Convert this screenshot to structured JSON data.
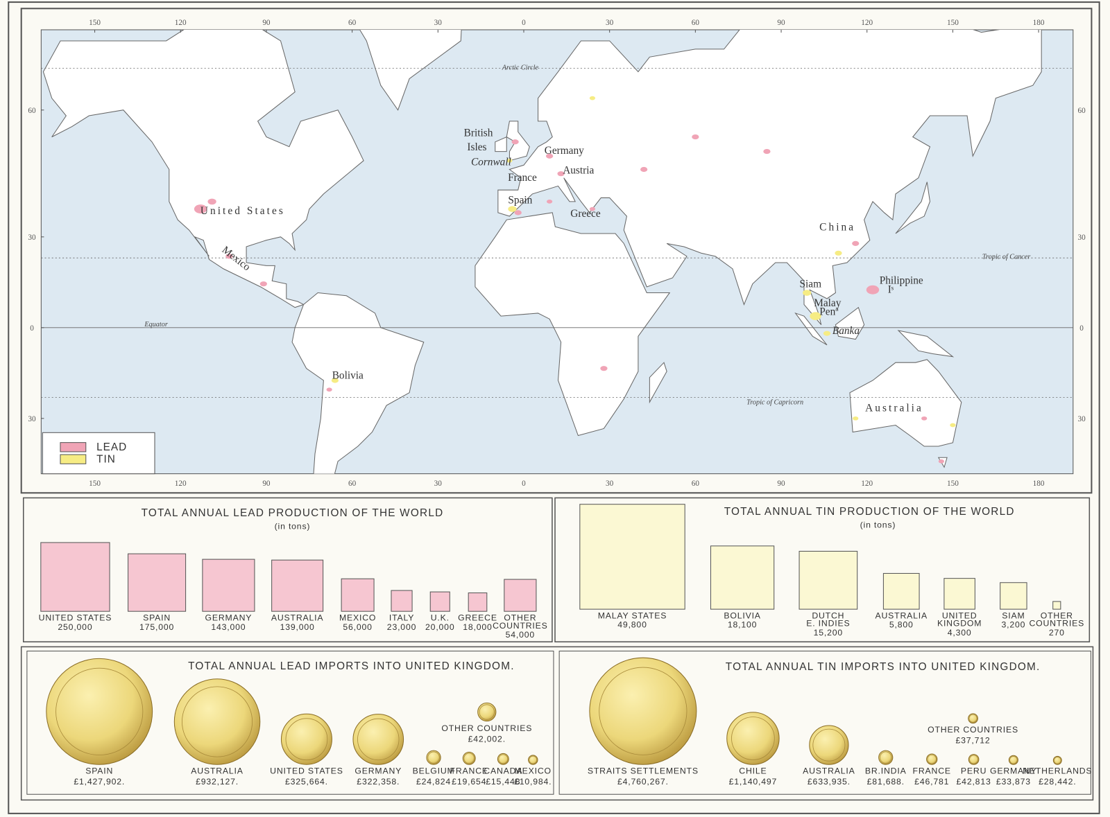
{
  "map": {
    "longitude_ticks": [
      {
        "value": -150,
        "label": "150"
      },
      {
        "value": -120,
        "label": "120"
      },
      {
        "value": -90,
        "label": "90"
      },
      {
        "value": -60,
        "label": "60"
      },
      {
        "value": -30,
        "label": "30"
      },
      0,
      30,
      60,
      90,
      120,
      150,
      180
    ],
    "latitude_ticks": [
      60,
      30,
      0,
      {
        "value": -30,
        "label": "30"
      }
    ],
    "lines": {
      "arctic_circle": "Arctic Circle",
      "tropic_of_cancer": "Tropic of Cancer",
      "equator": "Equator",
      "tropic_of_capricorn": "Tropic of Capricorn"
    },
    "places": {
      "british": "British",
      "isles": "Isles",
      "cornwall": "Cornwall",
      "germany": "Germany",
      "austria": "Austria",
      "france": "France",
      "spain": "Spain",
      "greece": "Greece",
      "united_states": "United States",
      "mexico": "Mexico",
      "bolivia": "Bolivia",
      "china": "China",
      "siam": "Siam",
      "malay": "Malay",
      "pena": "Penª",
      "philippine": "Philippine",
      "is": "Iˢ",
      "banka": "Banka",
      "australia": "Australia"
    },
    "legend": [
      {
        "label": "LEAD",
        "color": "#f0a4b6"
      },
      {
        "label": "TIN",
        "color": "#f6ec84"
      }
    ]
  },
  "lead_production": {
    "title": "TOTAL ANNUAL LEAD PRODUCTION OF THE WORLD",
    "subtitle": "(in tons)",
    "color": "#f6c6d1",
    "items": [
      {
        "name": [
          "UNITED STATES"
        ],
        "value": 250000,
        "value_label": "250,000"
      },
      {
        "name": [
          "SPAIN"
        ],
        "value": 175000,
        "value_label": "175,000"
      },
      {
        "name": [
          "GERMANY"
        ],
        "value": 143000,
        "value_label": "143,000"
      },
      {
        "name": [
          "AUSTRALIA"
        ],
        "value": 139000,
        "value_label": "139,000"
      },
      {
        "name": [
          "MEXICO"
        ],
        "value": 56000,
        "value_label": "56,000"
      },
      {
        "name": [
          "ITALY"
        ],
        "value": 23000,
        "value_label": "23,000"
      },
      {
        "name": [
          "U.K."
        ],
        "value": 20000,
        "value_label": "20,000"
      },
      {
        "name": [
          "GREECE"
        ],
        "value": 18000,
        "value_label": "18,000"
      },
      {
        "name": [
          "OTHER",
          "COUNTRIES"
        ],
        "value": 54000,
        "value_label": "54,000"
      }
    ]
  },
  "tin_production": {
    "title": "TOTAL ANNUAL TIN PRODUCTION OF THE WORLD",
    "subtitle": "(in tons)",
    "color": "#fbf8d3",
    "items": [
      {
        "name": [
          "MALAY STATES"
        ],
        "value": 49800,
        "value_label": "49,800"
      },
      {
        "name": [
          "BOLIVIA"
        ],
        "value": 18100,
        "value_label": "18,100"
      },
      {
        "name": [
          "DUTCH",
          "E. INDIES"
        ],
        "value": 15200,
        "value_label": "15,200"
      },
      {
        "name": [
          "AUSTRALIA"
        ],
        "value": 5800,
        "value_label": "5,800"
      },
      {
        "name": [
          "UNITED",
          "KINGDOM"
        ],
        "value": 4300,
        "value_label": "4,300"
      },
      {
        "name": [
          "SIAM"
        ],
        "value": 3200,
        "value_label": "3,200"
      },
      {
        "name": [
          "OTHER",
          "COUNTRIES"
        ],
        "value": 270
      }
    ]
  },
  "lead_imports": {
    "title": "TOTAL ANNUAL LEAD IMPORTS INTO UNITED KINGDOM.",
    "items": [
      {
        "name": "SPAIN",
        "value": 1427902,
        "value_label": "£1,427,902."
      },
      {
        "name": "AUSTRALIA",
        "value": 932127,
        "value_label": "£932,127."
      },
      {
        "name": "UNITED STATES",
        "value": 325664,
        "value_label": "£325,664."
      },
      {
        "name": "GERMANY",
        "value": 322358,
        "value_label": "£322,358."
      },
      {
        "name": "BELGIUM",
        "value": 24824,
        "value_label": "£24,824"
      },
      {
        "name": "FRANCE",
        "value": 19654,
        "value_label": "£19,654"
      },
      {
        "name": "CANADA",
        "value": 15448,
        "value_label": "£15,448"
      },
      {
        "name": "MEXICO",
        "value": 10984,
        "value_label": "£10,984."
      },
      {
        "name": "OTHER COUNTRIES",
        "value": 42002,
        "value_label": "£42,002."
      }
    ]
  },
  "tin_imports": {
    "title": "TOTAL ANNUAL TIN IMPORTS INTO UNITED KINGDOM.",
    "items": [
      {
        "name": "STRAITS SETTLEMENTS",
        "value": 4760267,
        "value_label": "£4,760,267."
      },
      {
        "name": "CHILE",
        "value": 1140497,
        "value_label": "£1,140,497"
      },
      {
        "name": "AUSTRALIA",
        "value": 633935,
        "value_label": "£633,935."
      },
      {
        "name": "BR.INDIA",
        "value": 81688,
        "value_label": "£81,688."
      },
      {
        "name": "FRANCE",
        "value": 46781,
        "value_label": "£46,781"
      },
      {
        "name": "PERU",
        "value": 42813,
        "value_label": "£42,813"
      },
      {
        "name": "GERMANY",
        "value": 33873,
        "value_label": "£33,873"
      },
      {
        "name": "NETHERLANDS",
        "value": 28442,
        "value_label": "£28,442."
      },
      {
        "name": "OTHER COUNTRIES",
        "value": 37712,
        "value_label": "£37,712"
      }
    ]
  }
}
